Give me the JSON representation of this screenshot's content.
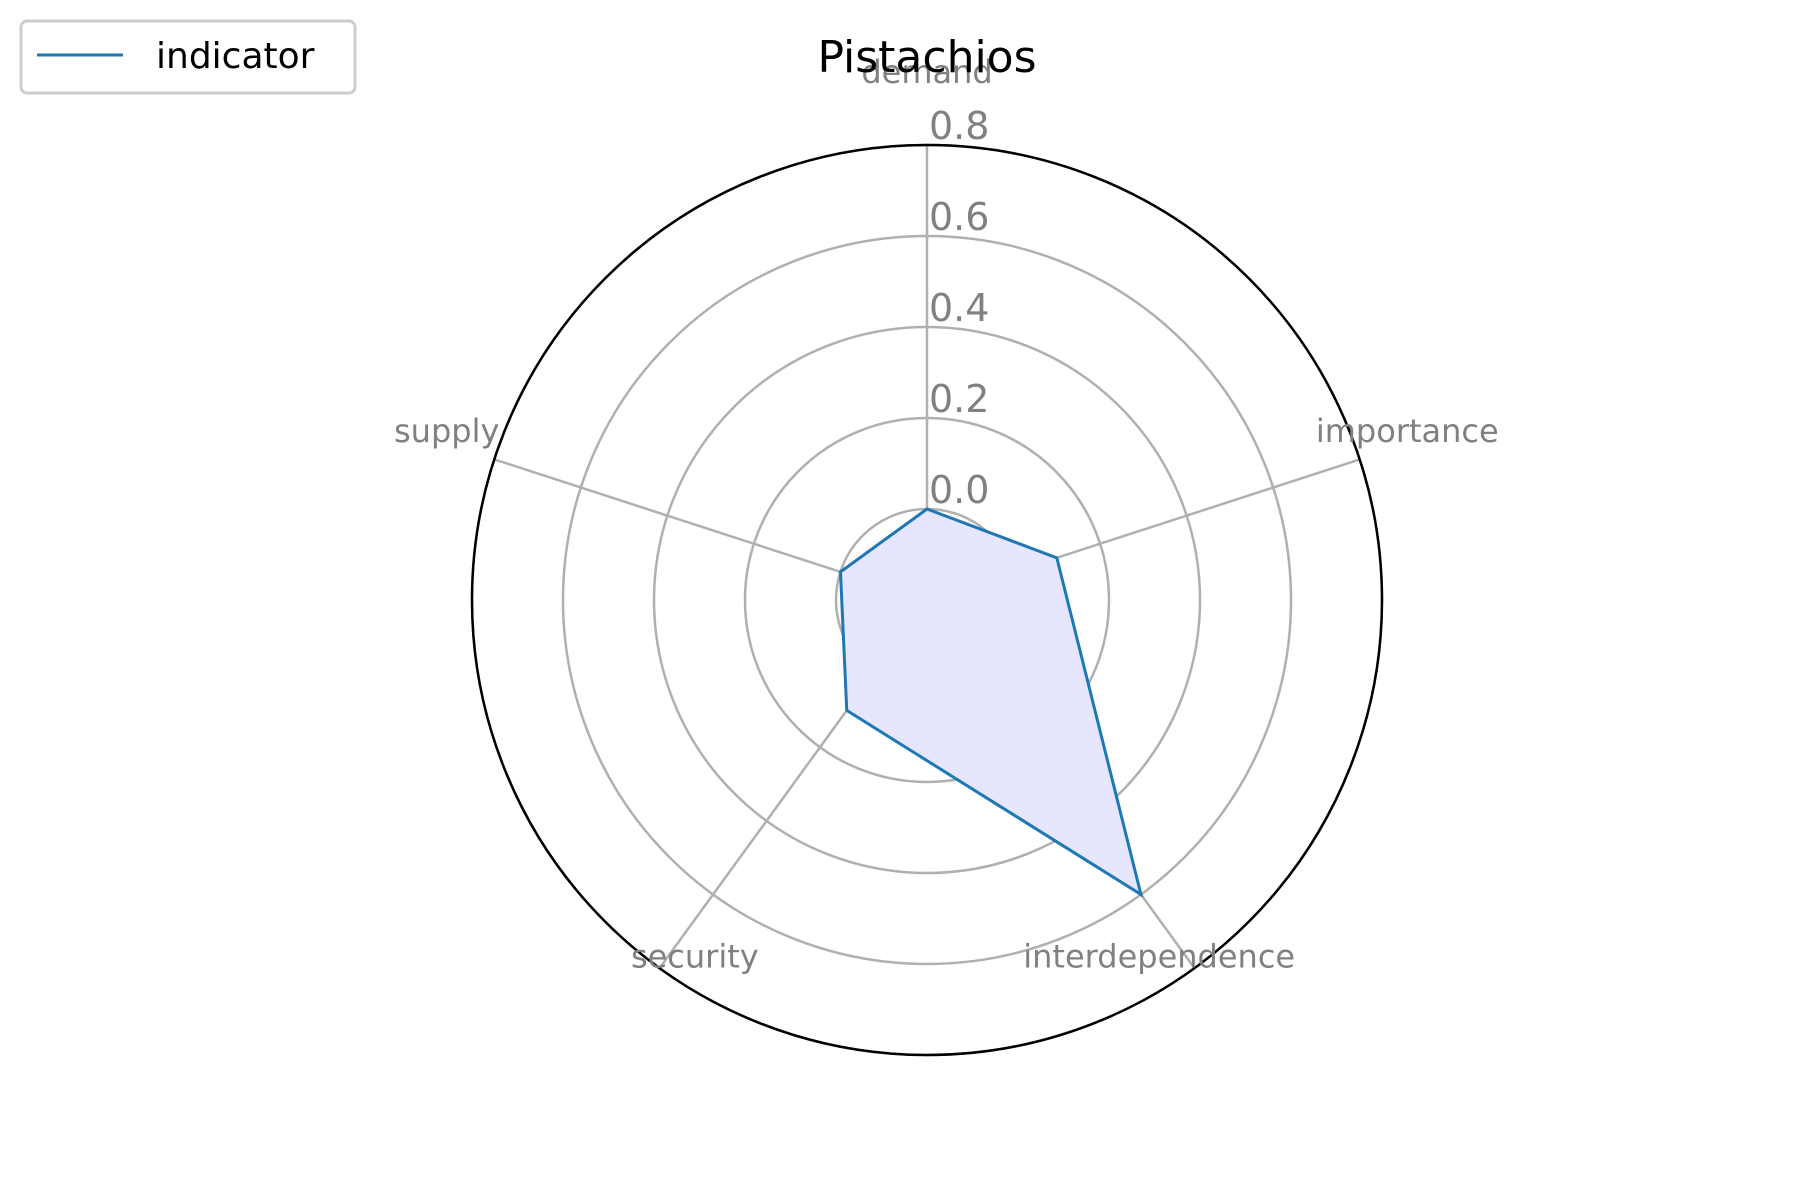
{
  "chart_data": {
    "type": "radar",
    "title": "Pistachios",
    "categories": [
      "demand",
      "importance",
      "interdependence",
      "security",
      "supply"
    ],
    "series": [
      {
        "name": "indicator",
        "values": [
          0.0,
          0.1,
          0.6,
          0.1,
          0.0
        ],
        "line_color": "#1f77b4",
        "fill_color": "#e6e6ff"
      }
    ],
    "radial_ticks": [
      "0.0",
      "0.2",
      "0.4",
      "0.6",
      "0.8"
    ],
    "radial_tick_values": [
      0.0,
      0.2,
      0.4,
      0.6,
      0.8
    ],
    "rlim": [
      -0.2,
      0.8
    ],
    "grid": true,
    "legend_position": "top-left",
    "colors": {
      "grid": "#b0b0b0",
      "tick_label": "#808080",
      "category_label": "#808080",
      "frame": "#000000",
      "title": "#000000"
    }
  }
}
